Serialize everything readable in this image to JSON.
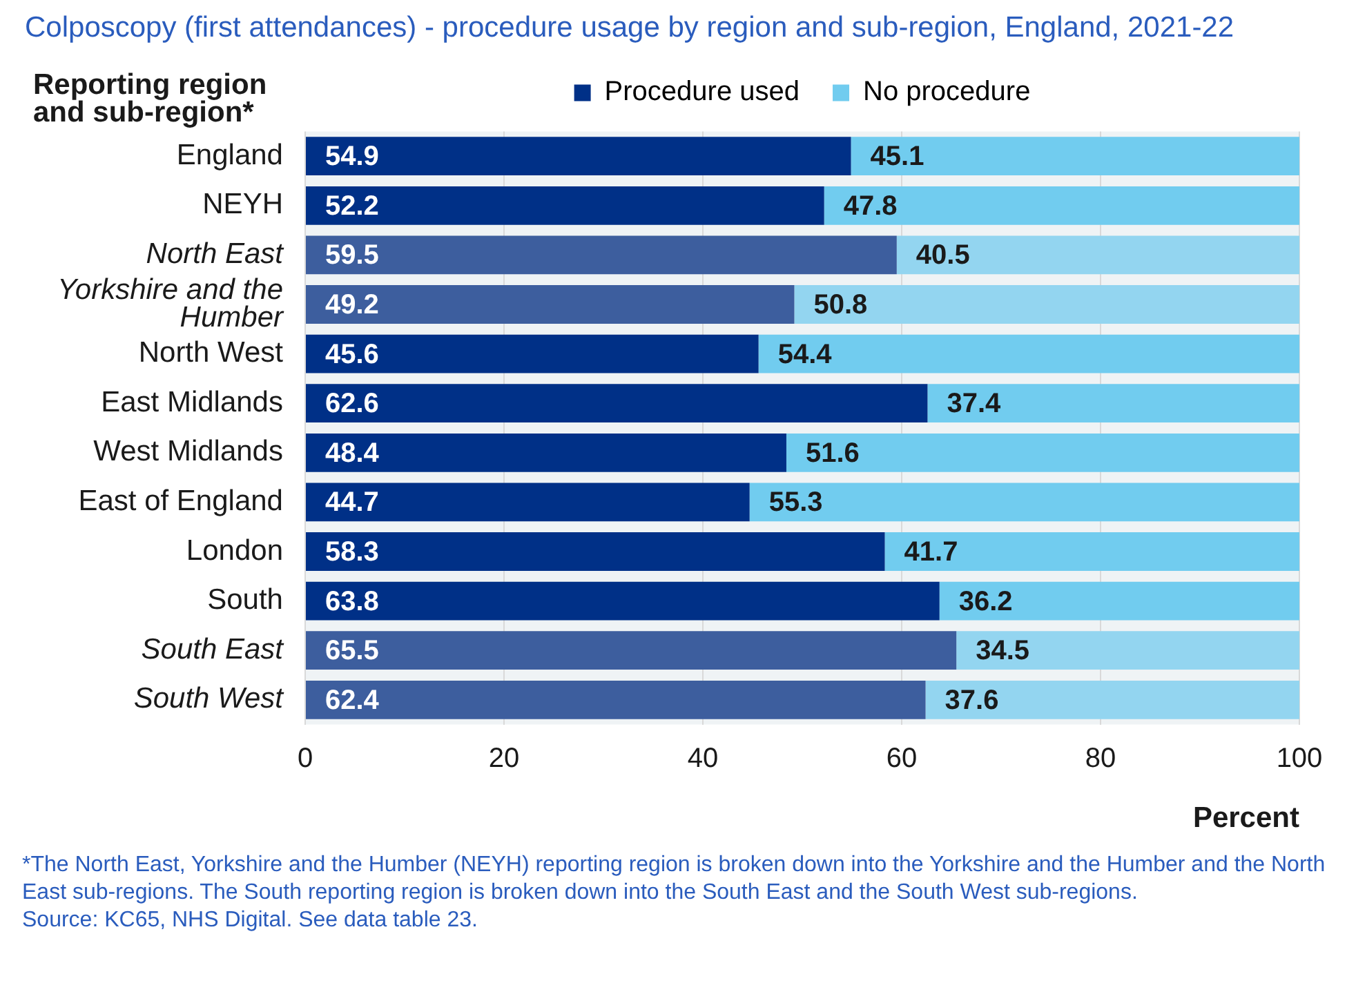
{
  "chart_data": {
    "type": "bar",
    "orientation": "horizontal",
    "stacked": true,
    "title": "Colposcopy (first attendances) - procedure usage by region and sub-region, England, 2021-22",
    "ylabel": "Reporting region and sub-region*",
    "xlabel": "Percent",
    "categories": [
      "England",
      "NEYH",
      "North East",
      "Yorkshire and the Humber",
      "North West",
      "East Midlands",
      "West Midlands",
      "East of England",
      "London",
      "South",
      "South East",
      "South West"
    ],
    "series": [
      {
        "name": "Procedure used",
        "color": "#003087",
        "colors": [
          "#003087",
          "#003087",
          "#3d5e9e",
          "#3d5e9e",
          "#003087",
          "#003087",
          "#003087",
          "#003087",
          "#003087",
          "#003087",
          "#3d5e9e",
          "#3d5e9e"
        ],
        "values": [
          54.9,
          52.2,
          59.5,
          49.2,
          45.6,
          62.6,
          48.4,
          44.7,
          58.3,
          63.8,
          65.5,
          62.4
        ]
      },
      {
        "name": "No procedure",
        "color": "#71ccef",
        "colors": [
          "#71ccef",
          "#71ccef",
          "#93d5f0",
          "#93d5f0",
          "#71ccef",
          "#71ccef",
          "#71ccef",
          "#71ccef",
          "#71ccef",
          "#71ccef",
          "#93d5f0",
          "#93d5f0"
        ],
        "values": [
          45.1,
          47.8,
          40.5,
          50.8,
          54.4,
          37.4,
          51.6,
          55.3,
          41.7,
          36.2,
          34.5,
          37.6
        ]
      }
    ],
    "xlim": [
      0,
      100
    ],
    "xticks": [
      0,
      20,
      40,
      60,
      80,
      100
    ],
    "grid": "x",
    "legend": "top",
    "data_labels": true,
    "annotations": [
      "*The North East, Yorkshire and the Humber (NEYH) reporting region is broken down into the Yorkshire and the Humber and the North East sub-regions. The South reporting region is broken down into the South East and the South West sub-regions.",
      "Source: KC65, NHS Digital. See data table 23."
    ]
  }
}
